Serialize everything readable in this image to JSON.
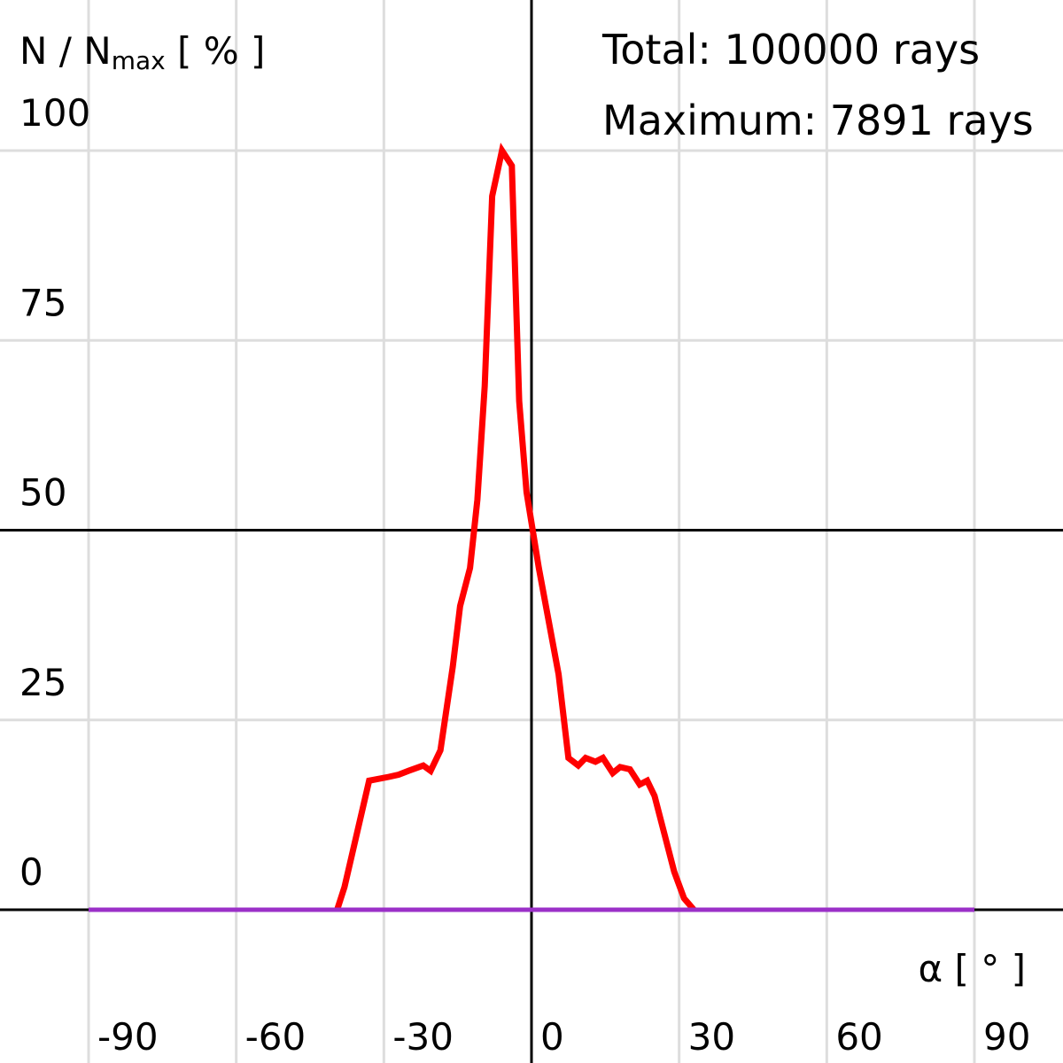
{
  "chart_data": {
    "type": "line",
    "ylabel": {
      "main": "N / N",
      "subscript": "max",
      "unit": " [ % ]"
    },
    "xlabel": "α [ ° ]",
    "annotations": [
      "Total: 100000 rays",
      "Maximum: 7891 rays"
    ],
    "xlim": [
      -90,
      90
    ],
    "ylim": [
      0,
      100
    ],
    "x_ticks": [
      "-90",
      "-60",
      "-30",
      "0",
      "30",
      "60",
      "90"
    ],
    "y_ticks": [
      "0",
      "25",
      "50",
      "75",
      "100"
    ],
    "grid": true,
    "colors": {
      "grid": "#dddddd",
      "axis": "#000000",
      "red_series": "#ff0000",
      "baseline": "#9b30c8"
    },
    "series": [
      {
        "color": "#ff0000",
        "points": [
          [
            -39.5,
            0
          ],
          [
            -38,
            3
          ],
          [
            -35.5,
            10
          ],
          [
            -33,
            17
          ],
          [
            -29,
            17.5
          ],
          [
            -27,
            17.8
          ],
          [
            -25,
            18.3
          ],
          [
            -22,
            19
          ],
          [
            -20.5,
            18.3
          ],
          [
            -18.5,
            21
          ],
          [
            -16,
            32
          ],
          [
            -14.5,
            40
          ],
          [
            -12.5,
            45
          ],
          [
            -11,
            54
          ],
          [
            -9.5,
            69
          ],
          [
            -8,
            94
          ],
          [
            -6,
            100
          ],
          [
            -4,
            98
          ],
          [
            -2.5,
            67
          ],
          [
            -1,
            55
          ],
          [
            1.5,
            45
          ],
          [
            5.5,
            31
          ],
          [
            7.5,
            20
          ],
          [
            9.5,
            19
          ],
          [
            11,
            20
          ],
          [
            13,
            19.5
          ],
          [
            14.5,
            20
          ],
          [
            16.5,
            18
          ],
          [
            18,
            18.8
          ],
          [
            20,
            18.5
          ],
          [
            22,
            16.5
          ],
          [
            23.5,
            17
          ],
          [
            25,
            15
          ],
          [
            27,
            10
          ],
          [
            29,
            5
          ],
          [
            31,
            1.5
          ],
          [
            33,
            0
          ]
        ]
      },
      {
        "color": "#9b30c8",
        "points": [
          [
            -90,
            0
          ],
          [
            90,
            0
          ]
        ]
      }
    ]
  }
}
